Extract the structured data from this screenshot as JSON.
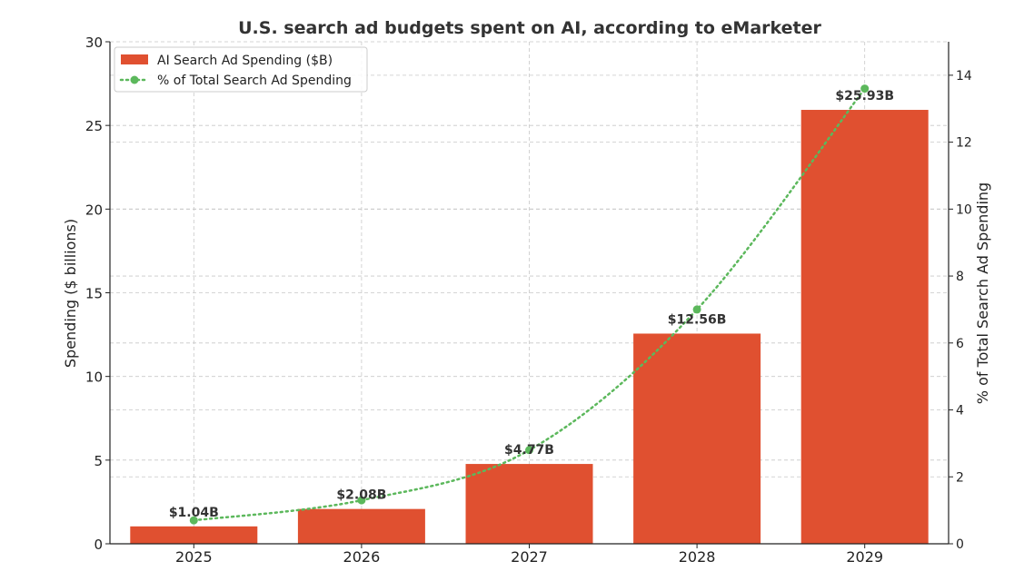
{
  "chart_data": {
    "type": "bar",
    "title": "U.S. search ad budgets spent on AI, according to eMarketer",
    "categories": [
      "2025",
      "2026",
      "2027",
      "2028",
      "2029"
    ],
    "series": [
      {
        "name": "AI Search Ad Spending ($B)",
        "type": "bar",
        "axis": "left",
        "color": "#e05030",
        "values": [
          1.04,
          2.08,
          4.77,
          12.56,
          25.93
        ],
        "labels": [
          "$1.04B",
          "$2.08B",
          "$4.77B",
          "$12.56B",
          "$25.93B"
        ]
      },
      {
        "name": "% of Total Search Ad Spending",
        "type": "line",
        "axis": "right",
        "color": "#5cb85c",
        "line_style": "dotted",
        "values": [
          0.7,
          1.3,
          2.8,
          7.0,
          13.6
        ]
      }
    ],
    "ylabel": "Spending ($ billions)",
    "ylabel_right": "% of Total Search Ad Spending",
    "xlabel": "",
    "ylim": [
      0,
      30
    ],
    "yticks": [
      "0",
      "5",
      "10",
      "15",
      "20",
      "25",
      "30"
    ],
    "ylim_right": [
      0,
      15
    ],
    "yticks_right": [
      "0",
      "2",
      "4",
      "6",
      "8",
      "10",
      "12",
      "14"
    ],
    "grid": true,
    "legend_position": "top-left"
  }
}
